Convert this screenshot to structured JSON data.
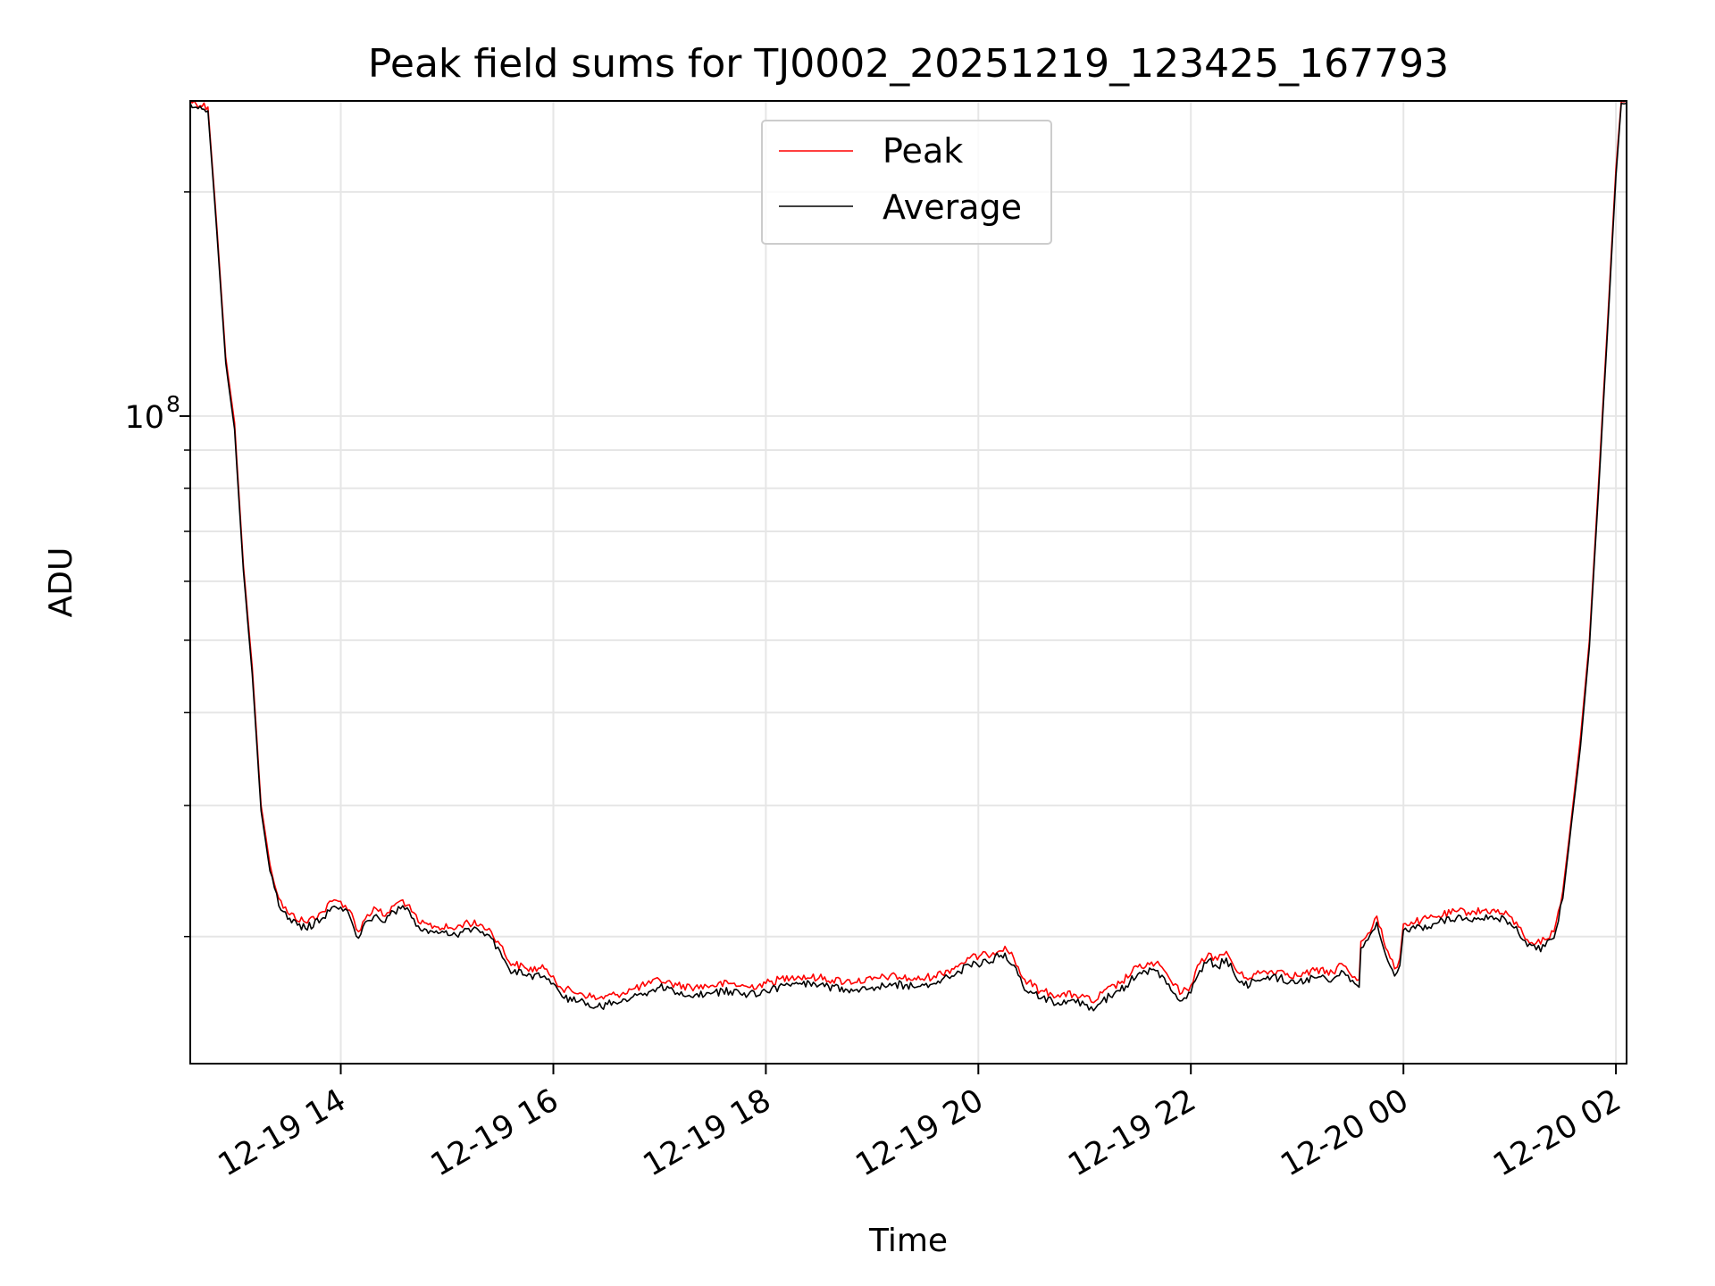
{
  "chart_data": {
    "type": "line",
    "title": "Peak field sums for TJ0002_20251219_123425_167793",
    "xlabel": "Time",
    "ylabel": "ADU",
    "yscale": "log",
    "ylim": [
      13500000,
      265000000
    ],
    "y_major_tick_labels": [
      {
        "value": 100000000,
        "label": "10",
        "exp": "8"
      }
    ],
    "y_minor_gridlines": [
      20000000,
      30000000,
      40000000,
      50000000,
      60000000,
      70000000,
      80000000,
      90000000,
      200000000
    ],
    "xlim": [
      "2025-12-19 12:35",
      "2025-12-20 02:06"
    ],
    "x_ticks": [
      {
        "time": "2025-12-19 14:00",
        "label": "12-19 14"
      },
      {
        "time": "2025-12-19 16:00",
        "label": "12-19 16"
      },
      {
        "time": "2025-12-19 18:00",
        "label": "12-19 18"
      },
      {
        "time": "2025-12-19 20:00",
        "label": "12-19 20"
      },
      {
        "time": "2025-12-19 22:00",
        "label": "12-19 22"
      },
      {
        "time": "2025-12-20 00:00",
        "label": "12-20 00"
      },
      {
        "time": "2025-12-20 02:00",
        "label": "12-20 02"
      }
    ],
    "grid": true,
    "legend_position": "upper-center",
    "series": [
      {
        "name": "Peak",
        "color": "#ff0000",
        "points": [
          [
            "2025-12-19 12:35",
            265000000
          ],
          [
            "2025-12-19 12:45",
            260000000
          ],
          [
            "2025-12-19 12:50",
            180000000
          ],
          [
            "2025-12-19 12:55",
            120000000
          ],
          [
            "2025-12-19 13:00",
            98000000
          ],
          [
            "2025-12-19 13:05",
            63000000
          ],
          [
            "2025-12-19 13:10",
            46000000
          ],
          [
            "2025-12-19 13:15",
            30000000
          ],
          [
            "2025-12-19 13:20",
            25000000
          ],
          [
            "2025-12-19 13:25",
            22500000
          ],
          [
            "2025-12-19 13:30",
            21500000
          ],
          [
            "2025-12-19 13:40",
            20900000
          ],
          [
            "2025-12-19 13:50",
            21600000
          ],
          [
            "2025-12-19 13:55",
            22300000
          ],
          [
            "2025-12-19 14:00",
            22300000
          ],
          [
            "2025-12-19 14:05",
            21700000
          ],
          [
            "2025-12-19 14:10",
            20300000
          ],
          [
            "2025-12-19 14:15",
            21400000
          ],
          [
            "2025-12-19 14:20",
            21800000
          ],
          [
            "2025-12-19 14:25",
            21300000
          ],
          [
            "2025-12-19 14:30",
            22000000
          ],
          [
            "2025-12-19 14:35",
            22400000
          ],
          [
            "2025-12-19 14:40",
            21600000
          ],
          [
            "2025-12-19 14:45",
            20800000
          ],
          [
            "2025-12-19 14:55",
            20600000
          ],
          [
            "2025-12-19 15:05",
            20500000
          ],
          [
            "2025-12-19 15:10",
            20900000
          ],
          [
            "2025-12-19 15:20",
            20700000
          ],
          [
            "2025-12-19 15:25",
            20300000
          ],
          [
            "2025-12-19 15:30",
            19500000
          ],
          [
            "2025-12-19 15:35",
            18500000
          ],
          [
            "2025-12-19 15:45",
            18100000
          ],
          [
            "2025-12-19 15:55",
            18100000
          ],
          [
            "2025-12-19 16:00",
            17700000
          ],
          [
            "2025-12-19 16:05",
            17000000
          ],
          [
            "2025-12-19 16:15",
            16800000
          ],
          [
            "2025-12-19 16:25",
            16500000
          ],
          [
            "2025-12-19 16:35",
            16700000
          ],
          [
            "2025-12-19 16:45",
            17000000
          ],
          [
            "2025-12-19 16:55",
            17300000
          ],
          [
            "2025-12-19 17:00",
            17500000
          ],
          [
            "2025-12-19 17:10",
            17200000
          ],
          [
            "2025-12-19 17:20",
            17100000
          ],
          [
            "2025-12-19 17:30",
            17200000
          ],
          [
            "2025-12-19 17:40",
            17300000
          ],
          [
            "2025-12-19 17:50",
            17100000
          ],
          [
            "2025-12-19 18:00",
            17300000
          ],
          [
            "2025-12-19 18:15",
            17700000
          ],
          [
            "2025-12-19 18:30",
            17600000
          ],
          [
            "2025-12-19 18:45",
            17400000
          ],
          [
            "2025-12-19 19:00",
            17500000
          ],
          [
            "2025-12-19 19:10",
            17700000
          ],
          [
            "2025-12-19 19:25",
            17500000
          ],
          [
            "2025-12-19 19:35",
            17700000
          ],
          [
            "2025-12-19 19:45",
            18100000
          ],
          [
            "2025-12-19 19:55",
            18700000
          ],
          [
            "2025-12-19 20:05",
            18900000
          ],
          [
            "2025-12-19 20:15",
            19400000
          ],
          [
            "2025-12-19 20:20",
            18700000
          ],
          [
            "2025-12-19 20:25",
            17600000
          ],
          [
            "2025-12-19 20:35",
            16900000
          ],
          [
            "2025-12-19 20:45",
            16700000
          ],
          [
            "2025-12-19 20:55",
            16700000
          ],
          [
            "2025-12-19 21:00",
            16600000
          ],
          [
            "2025-12-19 21:05",
            16300000
          ],
          [
            "2025-12-19 21:10",
            16800000
          ],
          [
            "2025-12-19 21:20",
            17300000
          ],
          [
            "2025-12-19 21:30",
            18200000
          ],
          [
            "2025-12-19 21:40",
            18400000
          ],
          [
            "2025-12-19 21:45",
            18000000
          ],
          [
            "2025-12-19 21:50",
            17200000
          ],
          [
            "2025-12-19 21:55",
            16800000
          ],
          [
            "2025-12-19 22:00",
            17200000
          ],
          [
            "2025-12-19 22:05",
            18400000
          ],
          [
            "2025-12-19 22:10",
            19000000
          ],
          [
            "2025-12-19 22:15",
            18600000
          ],
          [
            "2025-12-19 22:20",
            19100000
          ],
          [
            "2025-12-19 22:25",
            18100000
          ],
          [
            "2025-12-19 22:30",
            17600000
          ],
          [
            "2025-12-19 22:40",
            17900000
          ],
          [
            "2025-12-19 22:50",
            18000000
          ],
          [
            "2025-12-19 23:00",
            17700000
          ],
          [
            "2025-12-19 23:10",
            18000000
          ],
          [
            "2025-12-19 23:20",
            17900000
          ],
          [
            "2025-12-19 23:25",
            18400000
          ],
          [
            "2025-12-19 23:30",
            17800000
          ],
          [
            "2025-12-19 23:35",
            17500000
          ],
          [
            "2025-12-19 23:36",
            19700000
          ],
          [
            "2025-12-19 23:40",
            20200000
          ],
          [
            "2025-12-19 23:45",
            21300000
          ],
          [
            "2025-12-19 23:50",
            19300000
          ],
          [
            "2025-12-19 23:55",
            18100000
          ],
          [
            "2025-12-19 23:58",
            18700000
          ],
          [
            "2025-12-20 00:00",
            20800000
          ],
          [
            "2025-12-20 00:10",
            21000000
          ],
          [
            "2025-12-20 00:20",
            21300000
          ],
          [
            "2025-12-20 00:30",
            21600000
          ],
          [
            "2025-12-20 00:40",
            21600000
          ],
          [
            "2025-12-20 00:50",
            21700000
          ],
          [
            "2025-12-20 01:00",
            21300000
          ],
          [
            "2025-12-20 01:05",
            20600000
          ],
          [
            "2025-12-20 01:10",
            19800000
          ],
          [
            "2025-12-20 01:15",
            19600000
          ],
          [
            "2025-12-20 01:20",
            19800000
          ],
          [
            "2025-12-20 01:25",
            20300000
          ],
          [
            "2025-12-20 01:30",
            23000000
          ],
          [
            "2025-12-20 01:35",
            29000000
          ],
          [
            "2025-12-20 01:40",
            37000000
          ],
          [
            "2025-12-20 01:45",
            50000000
          ],
          [
            "2025-12-20 01:50",
            80000000
          ],
          [
            "2025-12-20 01:55",
            130000000
          ],
          [
            "2025-12-20 02:00",
            215000000
          ],
          [
            "2025-12-20 02:03",
            265000000
          ],
          [
            "2025-12-20 02:06",
            265000000
          ]
        ]
      },
      {
        "name": "Average",
        "color": "#000000",
        "points": [
          [
            "2025-12-19 12:35",
            263000000
          ],
          [
            "2025-12-19 12:45",
            257000000
          ],
          [
            "2025-12-19 12:50",
            177000000
          ],
          [
            "2025-12-19 12:55",
            118000000
          ],
          [
            "2025-12-19 13:00",
            96000000
          ],
          [
            "2025-12-19 13:05",
            62000000
          ],
          [
            "2025-12-19 13:10",
            45000000
          ],
          [
            "2025-12-19 13:15",
            29500000
          ],
          [
            "2025-12-19 13:20",
            24500000
          ],
          [
            "2025-12-19 13:25",
            22000000
          ],
          [
            "2025-12-19 13:30",
            21100000
          ],
          [
            "2025-12-19 13:40",
            20500000
          ],
          [
            "2025-12-19 13:50",
            21200000
          ],
          [
            "2025-12-19 13:55",
            21900000
          ],
          [
            "2025-12-19 14:00",
            21900000
          ],
          [
            "2025-12-19 14:05",
            21300000
          ],
          [
            "2025-12-19 14:10",
            19900000
          ],
          [
            "2025-12-19 14:15",
            21000000
          ],
          [
            "2025-12-19 14:20",
            21400000
          ],
          [
            "2025-12-19 14:25",
            20900000
          ],
          [
            "2025-12-19 14:30",
            21600000
          ],
          [
            "2025-12-19 14:35",
            22000000
          ],
          [
            "2025-12-19 14:40",
            21200000
          ],
          [
            "2025-12-19 14:45",
            20400000
          ],
          [
            "2025-12-19 14:55",
            20200000
          ],
          [
            "2025-12-19 15:05",
            20100000
          ],
          [
            "2025-12-19 15:10",
            20500000
          ],
          [
            "2025-12-19 15:20",
            20300000
          ],
          [
            "2025-12-19 15:25",
            19900000
          ],
          [
            "2025-12-19 15:30",
            19100000
          ],
          [
            "2025-12-19 15:35",
            18100000
          ],
          [
            "2025-12-19 15:45",
            17700000
          ],
          [
            "2025-12-19 15:55",
            17700000
          ],
          [
            "2025-12-19 16:00",
            17300000
          ],
          [
            "2025-12-19 16:05",
            16600000
          ],
          [
            "2025-12-19 16:15",
            16400000
          ],
          [
            "2025-12-19 16:25",
            16100000
          ],
          [
            "2025-12-19 16:35",
            16300000
          ],
          [
            "2025-12-19 16:45",
            16600000
          ],
          [
            "2025-12-19 16:55",
            16900000
          ],
          [
            "2025-12-19 17:00",
            17100000
          ],
          [
            "2025-12-19 17:10",
            16800000
          ],
          [
            "2025-12-19 17:20",
            16700000
          ],
          [
            "2025-12-19 17:30",
            16800000
          ],
          [
            "2025-12-19 17:40",
            16900000
          ],
          [
            "2025-12-19 17:50",
            16700000
          ],
          [
            "2025-12-19 18:00",
            16900000
          ],
          [
            "2025-12-19 18:15",
            17300000
          ],
          [
            "2025-12-19 18:30",
            17200000
          ],
          [
            "2025-12-19 18:45",
            17000000
          ],
          [
            "2025-12-19 19:00",
            17100000
          ],
          [
            "2025-12-19 19:10",
            17300000
          ],
          [
            "2025-12-19 19:25",
            17100000
          ],
          [
            "2025-12-19 19:35",
            17300000
          ],
          [
            "2025-12-19 19:45",
            17700000
          ],
          [
            "2025-12-19 19:55",
            18300000
          ],
          [
            "2025-12-19 20:05",
            18500000
          ],
          [
            "2025-12-19 20:15",
            19000000
          ],
          [
            "2025-12-19 20:20",
            18300000
          ],
          [
            "2025-12-19 20:25",
            17200000
          ],
          [
            "2025-12-19 20:35",
            16500000
          ],
          [
            "2025-12-19 20:45",
            16300000
          ],
          [
            "2025-12-19 20:55",
            16300000
          ],
          [
            "2025-12-19 21:00",
            16200000
          ],
          [
            "2025-12-19 21:05",
            15900000
          ],
          [
            "2025-12-19 21:10",
            16400000
          ],
          [
            "2025-12-19 21:20",
            16900000
          ],
          [
            "2025-12-19 21:30",
            17800000
          ],
          [
            "2025-12-19 21:40",
            18000000
          ],
          [
            "2025-12-19 21:45",
            17600000
          ],
          [
            "2025-12-19 21:50",
            16800000
          ],
          [
            "2025-12-19 21:55",
            16400000
          ],
          [
            "2025-12-19 22:00",
            16800000
          ],
          [
            "2025-12-19 22:05",
            18000000
          ],
          [
            "2025-12-19 22:10",
            18600000
          ],
          [
            "2025-12-19 22:15",
            18200000
          ],
          [
            "2025-12-19 22:20",
            18700000
          ],
          [
            "2025-12-19 22:25",
            17700000
          ],
          [
            "2025-12-19 22:30",
            17200000
          ],
          [
            "2025-12-19 22:40",
            17500000
          ],
          [
            "2025-12-19 22:50",
            17600000
          ],
          [
            "2025-12-19 23:00",
            17300000
          ],
          [
            "2025-12-19 23:10",
            17600000
          ],
          [
            "2025-12-19 23:20",
            17500000
          ],
          [
            "2025-12-19 23:25",
            18000000
          ],
          [
            "2025-12-19 23:30",
            17400000
          ],
          [
            "2025-12-19 23:35",
            17100000
          ],
          [
            "2025-12-19 23:36",
            19300000
          ],
          [
            "2025-12-19 23:40",
            19800000
          ],
          [
            "2025-12-19 23:45",
            20900000
          ],
          [
            "2025-12-19 23:50",
            18900000
          ],
          [
            "2025-12-19 23:55",
            17700000
          ],
          [
            "2025-12-19 23:58",
            18300000
          ],
          [
            "2025-12-20 00:00",
            20400000
          ],
          [
            "2025-12-20 00:10",
            20600000
          ],
          [
            "2025-12-20 00:20",
            20900000
          ],
          [
            "2025-12-20 00:30",
            21200000
          ],
          [
            "2025-12-20 00:40",
            21200000
          ],
          [
            "2025-12-20 00:50",
            21300000
          ],
          [
            "2025-12-20 01:00",
            20900000
          ],
          [
            "2025-12-20 01:05",
            20200000
          ],
          [
            "2025-12-20 01:10",
            19400000
          ],
          [
            "2025-12-20 01:15",
            19200000
          ],
          [
            "2025-12-20 01:20",
            19400000
          ],
          [
            "2025-12-20 01:25",
            19900000
          ],
          [
            "2025-12-20 01:30",
            22500000
          ],
          [
            "2025-12-20 01:35",
            28500000
          ],
          [
            "2025-12-20 01:40",
            36000000
          ],
          [
            "2025-12-20 01:45",
            49000000
          ],
          [
            "2025-12-20 01:50",
            78000000
          ],
          [
            "2025-12-20 01:55",
            127000000
          ],
          [
            "2025-12-20 02:00",
            210000000
          ],
          [
            "2025-12-20 02:03",
            263000000
          ],
          [
            "2025-12-20 02:06",
            263000000
          ]
        ]
      }
    ]
  }
}
